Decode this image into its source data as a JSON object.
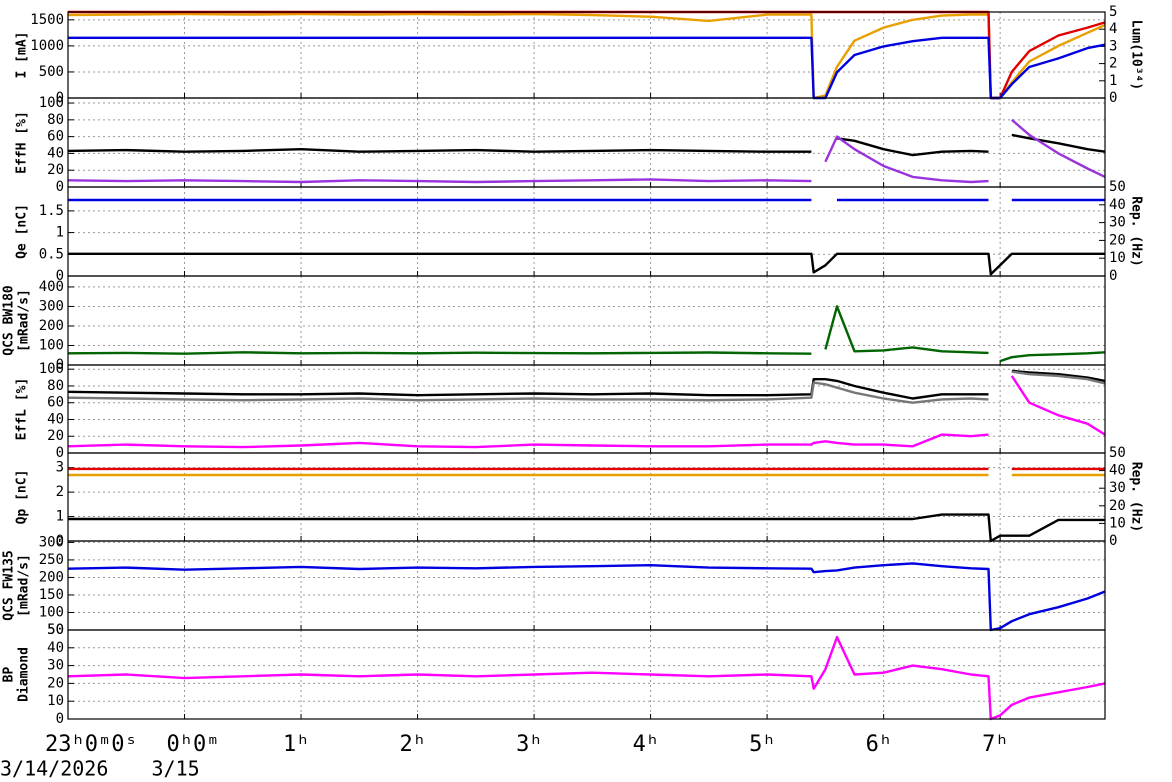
{
  "x_axis": {
    "xlim": [
      -1,
      7.9
    ],
    "xticks": [
      {
        "value": -1,
        "label": "23ʰ0ᵐ0ˢ"
      },
      {
        "value": 0,
        "label": "0ʰ0ᵐ"
      },
      {
        "value": 1,
        "label": "1ʰ"
      },
      {
        "value": 2,
        "label": "2ʰ"
      },
      {
        "value": 3,
        "label": "3ʰ"
      },
      {
        "value": 4,
        "label": "4ʰ"
      },
      {
        "value": 5,
        "label": "5ʰ"
      },
      {
        "value": 6,
        "label": "6ʰ"
      },
      {
        "value": 7,
        "label": "7ʰ"
      }
    ],
    "date_labels": [
      {
        "value": -1,
        "label": "3/14/2026"
      },
      {
        "value": 0,
        "label": "3/15"
      }
    ]
  },
  "chart_data": [
    {
      "type": "line",
      "ylabel": [
        "I [mA]"
      ],
      "y2label": "Lum(10³⁴)",
      "ylim": [
        0,
        1650
      ],
      "yticks": [
        0,
        500,
        1000,
        1500
      ],
      "y2lim": [
        0,
        5
      ],
      "y2ticks": [
        0,
        1,
        2,
        3,
        4,
        5
      ],
      "grid": true,
      "x": [
        -1,
        -0.5,
        0,
        0.5,
        1,
        1.5,
        2,
        2.5,
        3,
        3.5,
        4,
        4.5,
        5,
        5.38,
        5.4,
        5.5,
        5.6,
        5.75,
        6,
        6.25,
        6.5,
        6.75,
        6.9,
        6.92,
        7,
        7.1,
        7.25,
        7.5,
        7.75,
        7.9
      ],
      "series": [
        {
          "color": "#e8a000",
          "values": [
            1590,
            1600,
            1610,
            1600,
            1610,
            1600,
            1610,
            1600,
            1610,
            1590,
            1560,
            1480,
            1600,
            1600,
            0,
            50,
            600,
            1100,
            1350,
            1500,
            1580,
            1600,
            1600,
            0,
            0,
            300,
            700,
            1000,
            1250,
            1400
          ]
        },
        {
          "color": "#e00000",
          "values": [
            1650,
            1650,
            1650,
            1650,
            1650,
            1650,
            1650,
            1650,
            1650,
            1650,
            1650,
            1650,
            1650,
            1650,
            1650,
            1650,
            1650,
            1650,
            1650,
            1650,
            1650,
            1650,
            1650,
            0,
            0,
            500,
            900,
            1200,
            1350,
            1450
          ]
        },
        {
          "color": "#0000e0",
          "axis": "y2",
          "values": [
            3.5,
            3.5,
            3.5,
            3.5,
            3.5,
            3.5,
            3.5,
            3.5,
            3.5,
            3.5,
            3.5,
            3.5,
            3.5,
            3.5,
            0,
            0,
            1.5,
            2.5,
            3.0,
            3.3,
            3.5,
            3.5,
            3.5,
            0,
            0,
            0.8,
            1.8,
            2.3,
            2.9,
            3.1
          ]
        }
      ]
    },
    {
      "type": "line",
      "ylabel": [
        "EffH [%]"
      ],
      "ylim": [
        0,
        106
      ],
      "yticks": [
        0,
        20,
        40,
        60,
        80,
        100
      ],
      "grid": true,
      "x": [
        -1,
        -0.5,
        0,
        0.5,
        1,
        1.5,
        2,
        2.5,
        3,
        3.5,
        4,
        4.5,
        5,
        5.38,
        5.4,
        5.5,
        5.6,
        5.75,
        6,
        6.25,
        6.5,
        6.75,
        6.9,
        6.92,
        7,
        7.1,
        7.25,
        7.5,
        7.75,
        7.9
      ],
      "series": [
        {
          "color": "#000000",
          "values": [
            43,
            44,
            42,
            43,
            45,
            42,
            43,
            44,
            42,
            43,
            44,
            43,
            42,
            42,
            null,
            null,
            58,
            55,
            45,
            38,
            42,
            43,
            42,
            null,
            null,
            62,
            58,
            52,
            45,
            42
          ]
        },
        {
          "color": "#9933dd",
          "values": [
            8,
            7,
            8,
            7,
            6,
            8,
            7,
            6,
            7,
            8,
            9,
            7,
            8,
            7,
            null,
            30,
            60,
            45,
            25,
            12,
            8,
            6,
            7,
            null,
            null,
            80,
            62,
            40,
            22,
            12
          ]
        }
      ]
    },
    {
      "type": "line",
      "ylabel": [
        "Qe [nC]"
      ],
      "y2label": "Rep. (Hz)",
      "ylim": [
        0,
        2.05
      ],
      "yticks": [
        0,
        0.5,
        1,
        1.5
      ],
      "y2lim": [
        0,
        50
      ],
      "y2ticks": [
        0,
        10,
        20,
        30,
        40,
        50
      ],
      "grid": true,
      "x": [
        -1,
        -0.5,
        0,
        0.5,
        1,
        1.5,
        2,
        2.5,
        3,
        3.5,
        4,
        4.5,
        5,
        5.38,
        5.4,
        5.5,
        5.6,
        5.75,
        6,
        6.25,
        6.5,
        6.75,
        6.9,
        6.92,
        7,
        7.1,
        7.25,
        7.5,
        7.75,
        7.9
      ],
      "series": [
        {
          "color": "#0000e0",
          "values": [
            1.75,
            1.75,
            1.75,
            1.75,
            1.75,
            1.75,
            1.75,
            1.75,
            1.75,
            1.75,
            1.75,
            1.75,
            1.75,
            1.75,
            null,
            null,
            1.75,
            1.75,
            1.75,
            1.75,
            1.75,
            1.75,
            1.75,
            null,
            null,
            1.75,
            1.75,
            1.75,
            1.75,
            1.75
          ]
        },
        {
          "color": "#000000",
          "axis": "y2",
          "values": [
            12.5,
            12.5,
            12.5,
            12.5,
            12.5,
            12.5,
            12.5,
            12.5,
            12.5,
            12.5,
            12.5,
            12.5,
            12.5,
            12.5,
            2,
            6,
            12.5,
            12.5,
            12.5,
            12.5,
            12.5,
            12.5,
            12.5,
            1,
            6,
            12.5,
            12.5,
            12.5,
            12.5,
            12.5
          ]
        }
      ]
    },
    {
      "type": "line",
      "ylabel": [
        "QCS BW180",
        "[mRad/s]"
      ],
      "ylim": [
        0,
        456
      ],
      "yticks": [
        0,
        100,
        200,
        300,
        400
      ],
      "grid": true,
      "x": [
        -1,
        -0.5,
        0,
        0.5,
        1,
        1.5,
        2,
        2.5,
        3,
        3.5,
        4,
        4.5,
        5,
        5.38,
        5.4,
        5.5,
        5.6,
        5.75,
        6,
        6.25,
        6.5,
        6.75,
        6.9,
        6.92,
        7,
        7.1,
        7.25,
        7.5,
        7.75,
        7.9
      ],
      "series": [
        {
          "color": "#006400",
          "values": [
            60,
            62,
            58,
            65,
            60,
            62,
            60,
            63,
            61,
            60,
            62,
            64,
            60,
            58,
            null,
            80,
            300,
            70,
            75,
            90,
            70,
            65,
            62,
            null,
            20,
            40,
            50,
            55,
            60,
            65
          ]
        }
      ]
    },
    {
      "type": "line",
      "ylabel": [
        "EffL [%]"
      ],
      "ylim": [
        0,
        105
      ],
      "yticks": [
        0,
        20,
        40,
        60,
        80,
        100
      ],
      "grid": true,
      "x": [
        -1,
        -0.5,
        0,
        0.5,
        1,
        1.5,
        2,
        2.5,
        3,
        3.5,
        4,
        4.5,
        5,
        5.38,
        5.4,
        5.5,
        5.6,
        5.75,
        6,
        6.25,
        6.5,
        6.75,
        6.9,
        6.92,
        7,
        7.1,
        7.25,
        7.5,
        7.75,
        7.9
      ],
      "series": [
        {
          "color": "#000000",
          "values": [
            73,
            72,
            71,
            70,
            70,
            71,
            69,
            70,
            71,
            70,
            71,
            69,
            69,
            70,
            88,
            88,
            86,
            80,
            72,
            65,
            70,
            70,
            70,
            null,
            null,
            98,
            96,
            94,
            90,
            86
          ]
        },
        {
          "color": "#777777",
          "values": [
            66,
            65,
            64,
            63,
            64,
            65,
            63,
            64,
            65,
            64,
            64,
            63,
            64,
            66,
            84,
            82,
            78,
            72,
            65,
            60,
            64,
            65,
            64,
            null,
            null,
            97,
            94,
            92,
            88,
            83
          ]
        },
        {
          "color": "#ff00ff",
          "values": [
            8,
            10,
            8,
            7,
            9,
            12,
            8,
            7,
            10,
            9,
            8,
            8,
            10,
            10,
            12,
            14,
            12,
            10,
            10,
            8,
            22,
            20,
            22,
            null,
            null,
            92,
            60,
            45,
            35,
            22
          ]
        }
      ]
    },
    {
      "type": "line",
      "ylabel": [
        "Qp [nC]"
      ],
      "y2label": "Rep. (Hz)",
      "ylim": [
        0,
        3.6
      ],
      "yticks": [
        0,
        1,
        2,
        3
      ],
      "y2lim": [
        0,
        50
      ],
      "y2ticks": [
        0,
        10,
        20,
        30,
        40,
        50
      ],
      "grid": true,
      "x": [
        -1,
        -0.5,
        0,
        0.5,
        1,
        1.5,
        2,
        2.5,
        3,
        3.5,
        4,
        4.5,
        5,
        5.38,
        5.4,
        5.5,
        5.6,
        5.75,
        6,
        6.25,
        6.5,
        6.75,
        6.9,
        6.92,
        7,
        7.1,
        7.25,
        7.5,
        7.75,
        7.9
      ],
      "series": [
        {
          "color": "#e8a000",
          "values": [
            2.7,
            2.7,
            2.7,
            2.7,
            2.7,
            2.7,
            2.7,
            2.7,
            2.7,
            2.7,
            2.7,
            2.7,
            2.7,
            2.7,
            2.7,
            2.7,
            2.7,
            2.7,
            2.7,
            2.7,
            2.7,
            2.7,
            2.7,
            null,
            null,
            2.7,
            2.7,
            2.7,
            2.7,
            2.7
          ]
        },
        {
          "color": "#e00000",
          "values": [
            2.95,
            2.95,
            2.95,
            2.95,
            2.95,
            2.95,
            2.95,
            2.95,
            2.95,
            2.95,
            2.95,
            2.95,
            2.95,
            2.95,
            2.95,
            2.95,
            2.95,
            2.95,
            2.95,
            2.95,
            2.95,
            2.95,
            2.95,
            null,
            null,
            2.95,
            2.95,
            2.95,
            2.95,
            2.95
          ]
        },
        {
          "color": "#000000",
          "axis": "y2",
          "values": [
            12.5,
            12.5,
            12.5,
            12.5,
            12.5,
            12.5,
            12.5,
            12.5,
            12.5,
            12.5,
            12.5,
            12.5,
            12.5,
            12.5,
            12.5,
            12.5,
            12.5,
            12.5,
            12.5,
            12.5,
            15,
            15,
            15,
            0,
            3,
            3,
            3,
            12,
            12,
            12
          ]
        }
      ]
    },
    {
      "type": "line",
      "ylabel": [
        "QCS FW135",
        "[mRad/s]"
      ],
      "ylim": [
        50,
        304
      ],
      "yticks": [
        50,
        100,
        150,
        200,
        250,
        300
      ],
      "grid": true,
      "x": [
        -1,
        -0.5,
        0,
        0.5,
        1,
        1.5,
        2,
        2.5,
        3,
        3.5,
        4,
        4.5,
        5,
        5.38,
        5.4,
        5.5,
        5.6,
        5.75,
        6,
        6.25,
        6.5,
        6.75,
        6.9,
        6.92,
        7,
        7.1,
        7.25,
        7.5,
        7.75,
        7.9
      ],
      "series": [
        {
          "color": "#0000e0",
          "values": [
            225,
            228,
            222,
            226,
            230,
            224,
            228,
            226,
            230,
            232,
            235,
            228,
            226,
            225,
            215,
            218,
            220,
            228,
            235,
            240,
            232,
            226,
            224,
            50,
            55,
            75,
            95,
            115,
            140,
            160
          ]
        }
      ]
    },
    {
      "type": "line",
      "ylabel": [
        "BP",
        "Diamond"
      ],
      "ylim": [
        0,
        50
      ],
      "yticks": [
        0,
        10,
        20,
        30,
        40,
        50
      ],
      "grid": true,
      "x": [
        -1,
        -0.5,
        0,
        0.5,
        1,
        1.5,
        2,
        2.5,
        3,
        3.5,
        4,
        4.5,
        5,
        5.38,
        5.4,
        5.5,
        5.6,
        5.75,
        6,
        6.25,
        6.5,
        6.75,
        6.9,
        6.92,
        7,
        7.1,
        7.25,
        7.5,
        7.75,
        7.9
      ],
      "series": [
        {
          "color": "#ff00ff",
          "values": [
            24,
            25,
            23,
            24,
            25,
            24,
            25,
            24,
            25,
            26,
            25,
            24,
            25,
            24,
            17,
            28,
            46,
            25,
            26,
            30,
            28,
            25,
            24,
            0,
            2,
            8,
            12,
            15,
            18,
            20
          ]
        }
      ]
    }
  ]
}
